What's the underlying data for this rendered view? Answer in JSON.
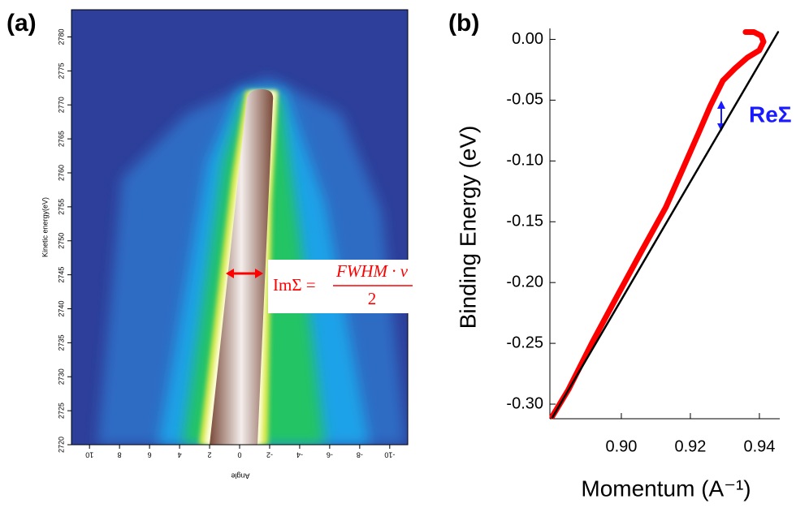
{
  "chart_data": [
    {
      "type": "heatmap",
      "panel_label": "(a)",
      "xlabel": "Angle",
      "ylabel": "Kinetic energy(eV)",
      "xlim": [
        11.2,
        -11.2
      ],
      "ylim": [
        2720,
        2784
      ],
      "xticks": [
        10,
        8,
        6,
        4,
        2,
        0,
        -2,
        -4,
        -6,
        -8,
        -10
      ],
      "yticks": [
        2720,
        2725,
        2730,
        2735,
        2740,
        2745,
        2750,
        2755,
        2760,
        2765,
        2770,
        2775,
        2780
      ],
      "annotation": {
        "lhs": "ImΣ =",
        "numerator": "FWHM · v",
        "denominator": "2"
      }
    },
    {
      "type": "line",
      "panel_label": "(b)",
      "xlabel": "Momentum (A⁻¹)",
      "ylabel": "Binding Energy (eV)",
      "xlim": [
        0.8793,
        0.9459
      ],
      "ylim": [
        -0.312,
        0.009
      ],
      "xticks": [
        {
          "value": 0.9,
          "label": "0.90"
        },
        0.92,
        0.94
      ],
      "yticks": [
        {
          "value": 0,
          "label": "0.00"
        },
        -0.05,
        {
          "value": -0.1,
          "label": "-0.10"
        },
        -0.15,
        {
          "value": -0.2,
          "label": "-0.20"
        },
        -0.25,
        {
          "value": -0.3,
          "label": "-0.30"
        }
      ],
      "series": [
        {
          "color": "#ff0000",
          "x": [
            0.88,
            0.8847,
            0.8918,
            0.8988,
            0.9059,
            0.9129,
            0.9176,
            0.9224,
            0.9259,
            0.9294,
            0.9329,
            0.9365,
            0.94,
            0.9412,
            0.9405,
            0.9384,
            0.936
          ],
          "values": [
            -0.31,
            -0.288,
            -0.248,
            -0.211,
            -0.174,
            -0.138,
            -0.108,
            -0.077,
            -0.054,
            -0.034,
            -0.024,
            -0.015,
            -0.009,
            -0.002,
            0.003,
            0.006,
            0.006
          ]
        },
        {
          "color": "#000000",
          "x": [
            0.88,
            0.9454
          ],
          "values": [
            -0.311,
            0.006
          ]
        }
      ],
      "annotation": {
        "text": "ReΣ",
        "color": "#1a1aff"
      }
    }
  ]
}
